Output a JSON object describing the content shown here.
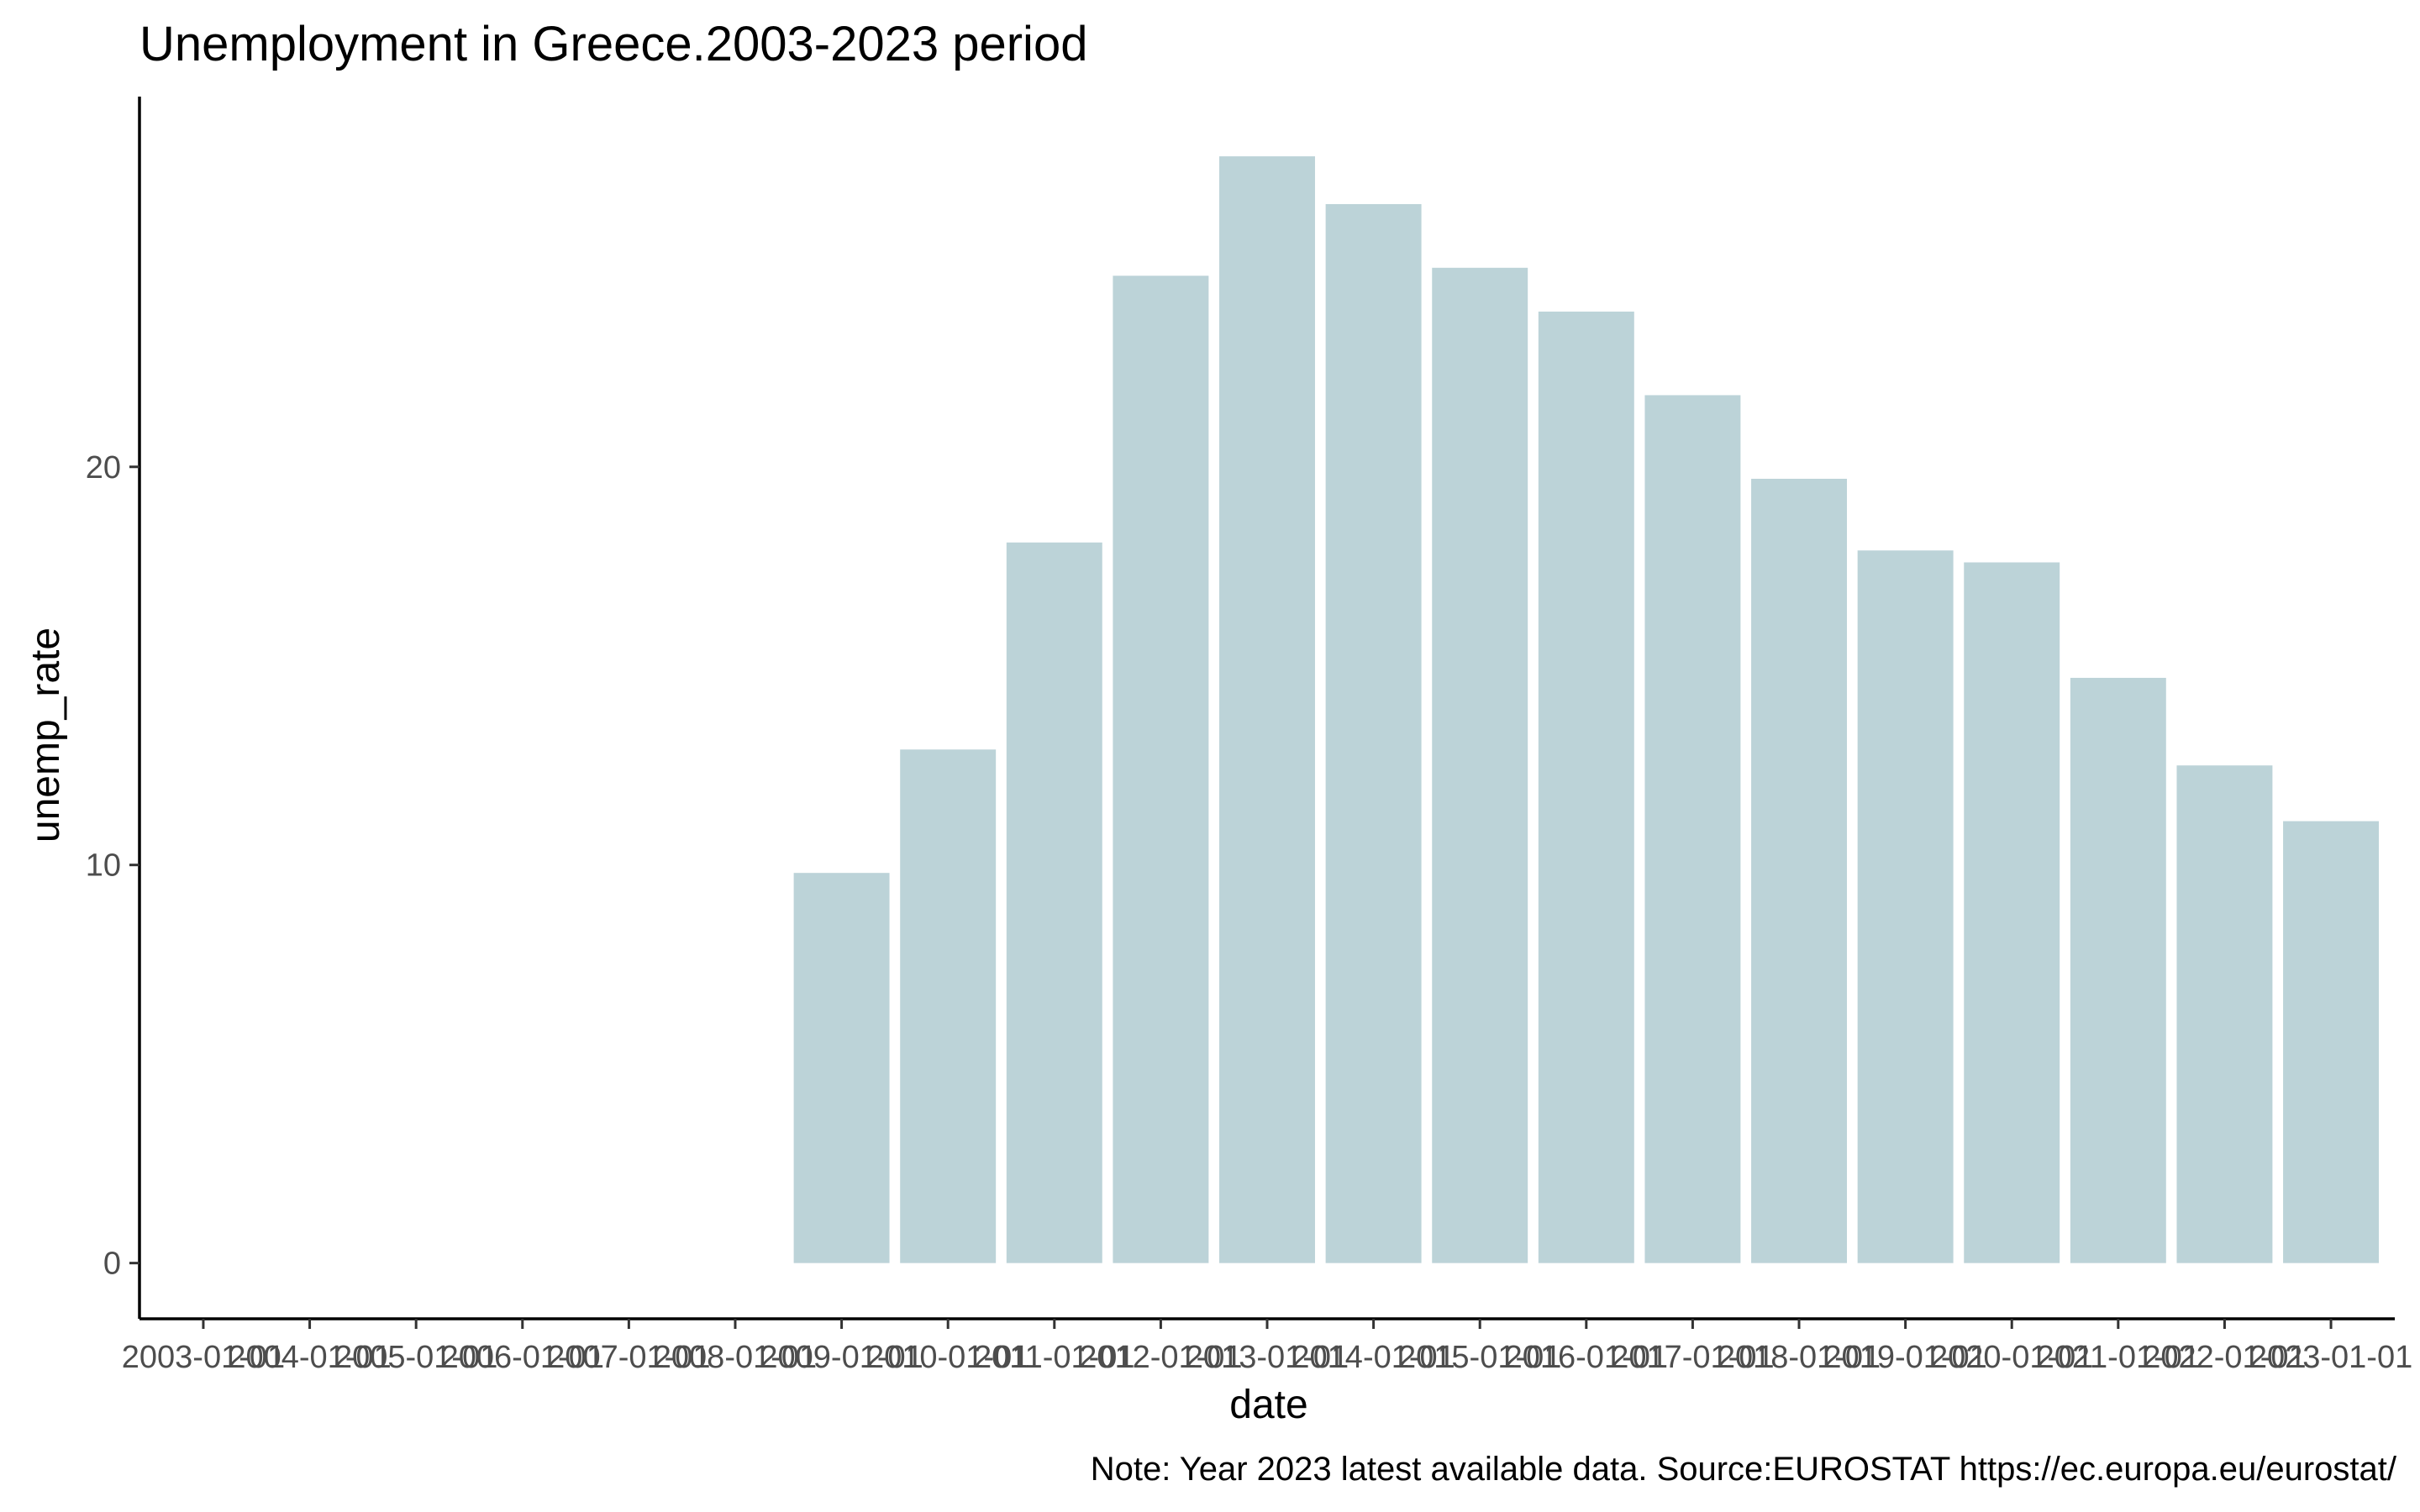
{
  "chart_data": {
    "type": "bar",
    "title": "Unemployment in Greece.2003-2023 period",
    "xlabel": "date",
    "ylabel": "unemp_rate",
    "caption": "Note: Year 2023  latest available data. Source:EUROSTAT https://ec.europa.eu/eurostat/",
    "categories": [
      "2003-01-01",
      "2004-01-01",
      "2005-01-01",
      "2006-01-01",
      "2007-01-01",
      "2008-01-01",
      "2009-01-01",
      "2010-01-01",
      "2011-01-01",
      "2012-01-01",
      "2013-01-01",
      "2014-01-01",
      "2015-01-01",
      "2016-01-01",
      "2017-01-01",
      "2018-01-01",
      "2019-01-01",
      "2020-01-01",
      "2021-01-01",
      "2022-01-01",
      "2023-01-01"
    ],
    "values": [
      null,
      null,
      null,
      null,
      null,
      null,
      9.8,
      12.9,
      18.1,
      24.8,
      27.8,
      26.6,
      25.0,
      23.9,
      21.8,
      19.7,
      17.9,
      17.6,
      14.7,
      12.5,
      11.1
    ],
    "yticks": [
      0,
      10,
      20
    ],
    "ylim": [
      -1.4,
      29.3
    ],
    "bar_color": "#bcd3d8",
    "grid": false
  }
}
